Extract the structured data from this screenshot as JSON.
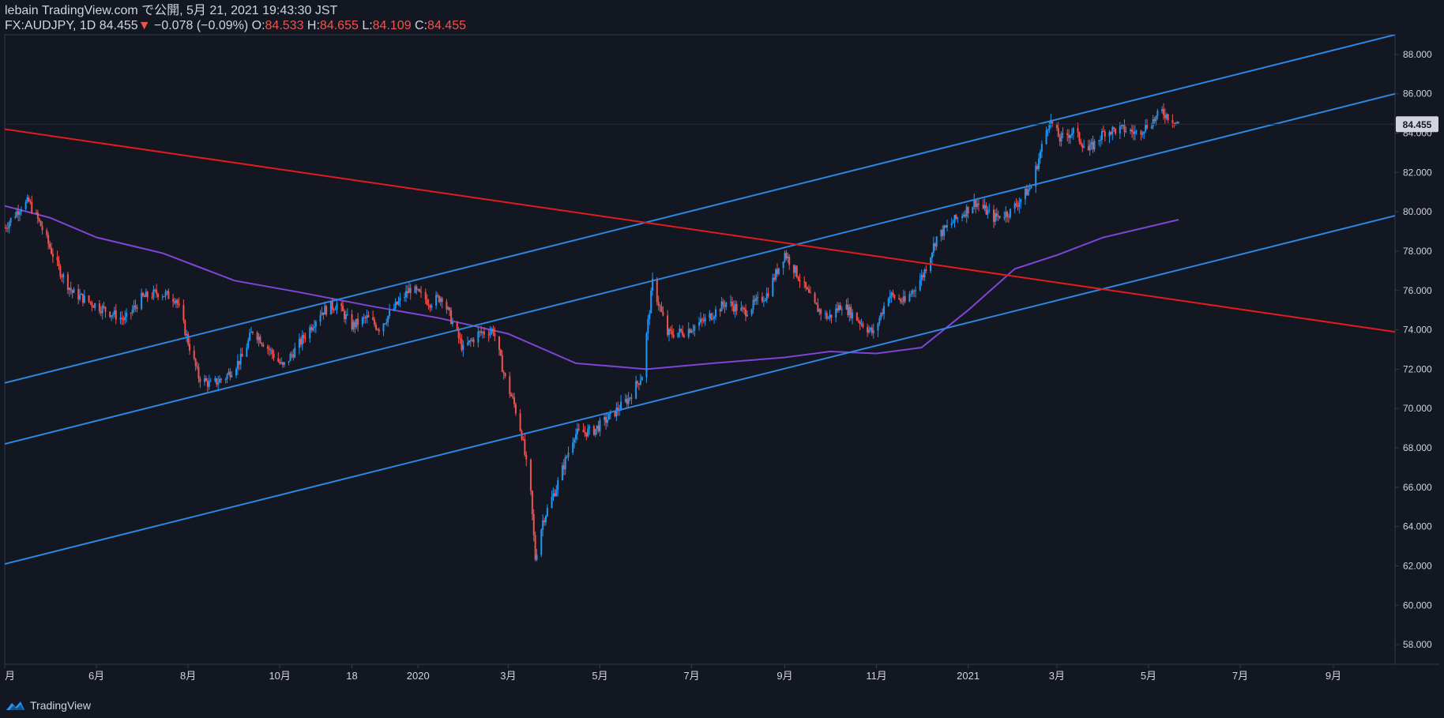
{
  "header": {
    "publish_line": "lebain TradingView.com で公開, 5月 21, 2021 19:43:30 JST",
    "symbol": "FX:AUDJPY, 1D",
    "last": "84.455",
    "arrow": "▼",
    "change": "−0.078 (−0.09%)",
    "o_label": "O:",
    "o_value": "84.533",
    "h_label": "H:",
    "h_value": "84.655",
    "l_label": "L:",
    "l_value": "84.109",
    "c_label": "C:",
    "c_value": "84.455"
  },
  "footer": {
    "brand": "TradingView",
    "logo_icon": "tradingview-logo-icon"
  },
  "colors": {
    "background": "#131722",
    "up": "#2196f3",
    "down": "#ef5350",
    "channel": "#2d86e0",
    "trend_red": "#e31b1b",
    "ma": "#7e45d6",
    "price_label_bg": "#d1d4dc"
  },
  "chart_data": {
    "type": "candlestick",
    "symbol": "FX:AUDJPY",
    "interval": "1D",
    "last_price_label": "84.455",
    "ylim": [
      57,
      89
    ],
    "yticks": [
      "88.000",
      "86.000",
      "84.000",
      "82.000",
      "80.000",
      "78.000",
      "76.000",
      "74.000",
      "72.000",
      "70.000",
      "68.000",
      "66.000",
      "64.000",
      "62.000",
      "60.000",
      "58.000"
    ],
    "xticks": [
      "月",
      "6月",
      "8月",
      "10月",
      "18",
      "2020",
      "3月",
      "5月",
      "7月",
      "9月",
      "11月",
      "2021",
      "3月",
      "5月",
      "7月",
      "9月"
    ],
    "xtick_dates": [
      "2019-04-01",
      "2019-06-01",
      "2019-08-01",
      "2019-10-01",
      "2019-11-18",
      "2020-01-01",
      "2020-03-01",
      "2020-05-01",
      "2020-07-01",
      "2020-09-01",
      "2020-11-01",
      "2021-01-01",
      "2021-03-01",
      "2021-05-01",
      "2021-07-01",
      "2021-09-01"
    ],
    "x_range": [
      "2019-04-01",
      "2021-10-12"
    ],
    "price_path": [
      [
        "2019-04-01",
        79.2
      ],
      [
        "2019-04-12",
        80.3
      ],
      [
        "2019-04-17",
        80.5
      ],
      [
        "2019-04-25",
        79.3
      ],
      [
        "2019-05-07",
        77.1
      ],
      [
        "2019-05-16",
        75.9
      ],
      [
        "2019-05-28",
        75.4
      ],
      [
        "2019-06-07",
        75.0
      ],
      [
        "2019-06-20",
        74.5
      ],
      [
        "2019-07-01",
        75.6
      ],
      [
        "2019-07-12",
        75.9
      ],
      [
        "2019-07-24",
        75.6
      ],
      [
        "2019-08-01",
        73.4
      ],
      [
        "2019-08-08",
        71.6
      ],
      [
        "2019-08-16",
        71.2
      ],
      [
        "2019-08-26",
        71.6
      ],
      [
        "2019-09-06",
        72.6
      ],
      [
        "2019-09-13",
        74.0
      ],
      [
        "2019-09-24",
        73.0
      ],
      [
        "2019-10-03",
        72.1
      ],
      [
        "2019-10-15",
        73.4
      ],
      [
        "2019-10-28",
        74.9
      ],
      [
        "2019-11-08",
        75.3
      ],
      [
        "2019-11-18",
        74.2
      ],
      [
        "2019-11-28",
        74.6
      ],
      [
        "2019-12-06",
        74.1
      ],
      [
        "2019-12-18",
        75.3
      ],
      [
        "2019-12-27",
        76.1
      ],
      [
        "2020-01-09",
        75.4
      ],
      [
        "2020-01-17",
        75.7
      ],
      [
        "2020-01-31",
        73.0
      ],
      [
        "2020-02-10",
        73.8
      ],
      [
        "2020-02-20",
        74.0
      ],
      [
        "2020-02-28",
        71.5
      ],
      [
        "2020-03-05",
        70.2
      ],
      [
        "2020-03-10",
        68.7
      ],
      [
        "2020-03-16",
        65.6
      ],
      [
        "2020-03-19",
        62.4
      ],
      [
        "2020-03-24",
        64.3
      ],
      [
        "2020-04-02",
        66.0
      ],
      [
        "2020-04-14",
        68.7
      ],
      [
        "2020-04-27",
        68.9
      ],
      [
        "2020-05-08",
        69.6
      ],
      [
        "2020-05-20",
        70.5
      ],
      [
        "2020-05-29",
        71.7
      ],
      [
        "2020-06-05",
        76.4
      ],
      [
        "2020-06-15",
        73.8
      ],
      [
        "2020-06-26",
        73.9
      ],
      [
        "2020-07-10",
        74.5
      ],
      [
        "2020-07-24",
        75.4
      ],
      [
        "2020-08-05",
        74.9
      ],
      [
        "2020-08-20",
        75.8
      ],
      [
        "2020-09-01",
        77.9
      ],
      [
        "2020-09-08",
        77.0
      ],
      [
        "2020-09-21",
        75.2
      ],
      [
        "2020-09-30",
        74.6
      ],
      [
        "2020-10-09",
        75.3
      ],
      [
        "2020-10-20",
        74.5
      ],
      [
        "2020-10-30",
        73.8
      ],
      [
        "2020-11-09",
        75.8
      ],
      [
        "2020-11-20",
        75.4
      ],
      [
        "2020-12-02",
        76.8
      ],
      [
        "2020-12-11",
        78.7
      ],
      [
        "2020-12-22",
        79.5
      ],
      [
        "2021-01-06",
        80.5
      ],
      [
        "2021-01-18",
        79.7
      ],
      [
        "2021-01-29",
        80.0
      ],
      [
        "2021-02-12",
        81.3
      ],
      [
        "2021-02-24",
        84.7
      ],
      [
        "2021-03-03",
        83.7
      ],
      [
        "2021-03-12",
        84.1
      ],
      [
        "2021-03-22",
        83.1
      ],
      [
        "2021-04-02",
        84.1
      ],
      [
        "2021-04-14",
        84.2
      ],
      [
        "2021-04-23",
        84.0
      ],
      [
        "2021-05-05",
        84.7
      ],
      [
        "2021-05-10",
        85.1
      ],
      [
        "2021-05-21",
        84.455
      ]
    ],
    "moving_average": [
      [
        "2019-04-01",
        80.3
      ],
      [
        "2019-05-01",
        79.7
      ],
      [
        "2019-06-01",
        78.7
      ],
      [
        "2019-07-15",
        77.9
      ],
      [
        "2019-09-01",
        76.5
      ],
      [
        "2019-10-15",
        75.9
      ],
      [
        "2019-12-01",
        75.2
      ],
      [
        "2020-01-15",
        74.6
      ],
      [
        "2020-03-01",
        73.8
      ],
      [
        "2020-04-15",
        72.3
      ],
      [
        "2020-06-01",
        72.0
      ],
      [
        "2020-07-15",
        72.3
      ],
      [
        "2020-09-01",
        72.6
      ],
      [
        "2020-10-01",
        72.9
      ],
      [
        "2020-11-01",
        72.8
      ],
      [
        "2020-12-01",
        73.1
      ],
      [
        "2021-01-01",
        75.0
      ],
      [
        "2021-02-01",
        77.1
      ],
      [
        "2021-03-01",
        77.8
      ],
      [
        "2021-04-01",
        78.7
      ],
      [
        "2021-05-21",
        79.6
      ]
    ],
    "lines": [
      {
        "style": "channel-upper",
        "from": [
          "2019-04-01",
          71.3
        ],
        "to": [
          "2021-10-12",
          89.0
        ]
      },
      {
        "style": "channel-middle",
        "from": [
          "2019-04-01",
          68.2
        ],
        "to": [
          "2021-10-12",
          86.0
        ]
      },
      {
        "style": "channel-lower",
        "from": [
          "2019-04-01",
          62.1
        ],
        "to": [
          "2021-10-12",
          79.8
        ]
      },
      {
        "style": "trend-red",
        "from": [
          "2019-04-01",
          84.2
        ],
        "to": [
          "2021-10-12",
          73.9
        ]
      }
    ]
  }
}
